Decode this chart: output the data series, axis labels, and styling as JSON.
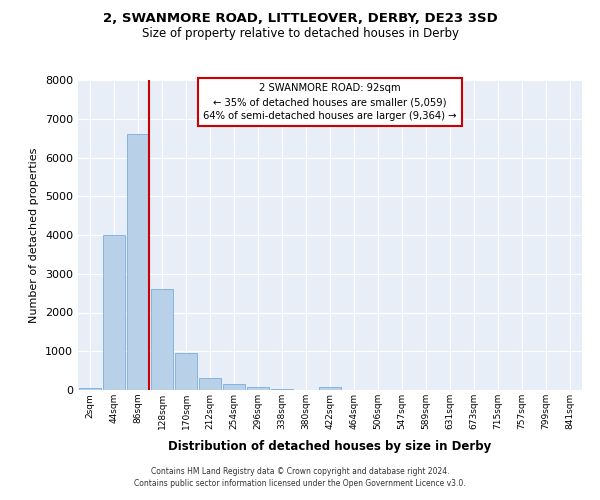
{
  "title_line1": "2, SWANMORE ROAD, LITTLEOVER, DERBY, DE23 3SD",
  "title_line2": "Size of property relative to detached houses in Derby",
  "xlabel": "Distribution of detached houses by size in Derby",
  "ylabel": "Number of detached properties",
  "bar_labels": [
    "2sqm",
    "44sqm",
    "86sqm",
    "128sqm",
    "170sqm",
    "212sqm",
    "254sqm",
    "296sqm",
    "338sqm",
    "380sqm",
    "422sqm",
    "464sqm",
    "506sqm",
    "547sqm",
    "589sqm",
    "631sqm",
    "673sqm",
    "715sqm",
    "757sqm",
    "799sqm",
    "841sqm"
  ],
  "bar_values": [
    50,
    4000,
    6600,
    2600,
    950,
    320,
    150,
    80,
    20,
    10,
    80,
    0,
    0,
    0,
    0,
    0,
    0,
    0,
    0,
    0,
    0
  ],
  "bar_color": "#b8d0e8",
  "bar_edge_color": "#7aade0",
  "vline_color": "#cc0000",
  "ylim": [
    0,
    8000
  ],
  "yticks": [
    0,
    1000,
    2000,
    3000,
    4000,
    5000,
    6000,
    7000,
    8000
  ],
  "bg_color": "#e8eef8",
  "grid_color": "#ffffff",
  "annotation_title": "2 SWANMORE ROAD: 92sqm",
  "annotation_line1": "← 35% of detached houses are smaller (5,059)",
  "annotation_line2": "64% of semi-detached houses are larger (9,364) →",
  "footer_line1": "Contains HM Land Registry data © Crown copyright and database right 2024.",
  "footer_line2": "Contains public sector information licensed under the Open Government Licence v3.0.",
  "vline_bin_index": 2
}
